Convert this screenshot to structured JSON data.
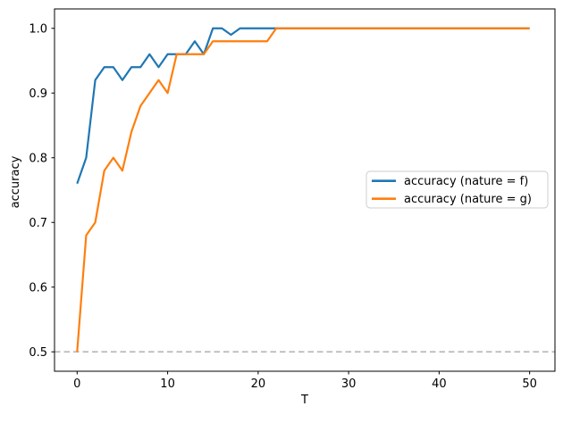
{
  "figure": {
    "background": "#ffffff",
    "spine_color": "#000000"
  },
  "chart_data": {
    "type": "line",
    "title": "",
    "xlabel": "T",
    "ylabel": "accuracy",
    "x_ticks": [
      "0",
      "10",
      "20",
      "30",
      "40",
      "50"
    ],
    "x_tick_values": [
      0,
      10,
      20,
      30,
      40,
      50
    ],
    "y_ticks": [
      "0.5",
      "0.6",
      "0.7",
      "0.8",
      "0.9",
      "1.0"
    ],
    "y_tick_values": [
      0.5,
      0.6,
      0.7,
      0.8,
      0.9,
      1.0
    ],
    "xlim": [
      -2.5,
      52.8
    ],
    "ylim": [
      0.47,
      1.03
    ],
    "grid": false,
    "legend_position": "center right",
    "reference_line": {
      "y": 0.5,
      "style": "dashed",
      "color": "#b9b9b9"
    },
    "x": [
      0,
      1,
      2,
      3,
      4,
      5,
      6,
      7,
      8,
      9,
      10,
      11,
      12,
      13,
      14,
      15,
      16,
      17,
      18,
      19,
      20,
      21,
      22,
      23,
      24,
      25,
      26,
      27,
      28,
      29,
      30,
      31,
      32,
      33,
      34,
      35,
      36,
      37,
      38,
      39,
      40,
      41,
      42,
      43,
      44,
      45,
      46,
      47,
      48,
      49,
      50
    ],
    "series": [
      {
        "name": "accuracy (nature = f)",
        "color": "#1f77b4",
        "values": [
          0.76,
          0.8,
          0.92,
          0.94,
          0.94,
          0.92,
          0.94,
          0.94,
          0.96,
          0.94,
          0.96,
          0.96,
          0.96,
          0.98,
          0.96,
          1.0,
          1.0,
          0.99,
          1.0,
          1.0,
          1.0,
          1.0,
          1.0,
          1.0,
          1.0,
          1.0,
          1.0,
          1.0,
          1.0,
          1.0,
          1.0,
          1.0,
          1.0,
          1.0,
          1.0,
          1.0,
          1.0,
          1.0,
          1.0,
          1.0,
          1.0,
          1.0,
          1.0,
          1.0,
          1.0,
          1.0,
          1.0,
          1.0,
          1.0,
          1.0,
          1.0
        ]
      },
      {
        "name": "accuracy (nature = g)",
        "color": "#ff7f0e",
        "values": [
          0.5,
          0.68,
          0.7,
          0.78,
          0.8,
          0.78,
          0.84,
          0.88,
          0.9,
          0.92,
          0.9,
          0.96,
          0.96,
          0.96,
          0.96,
          0.98,
          0.98,
          0.98,
          0.98,
          0.98,
          0.98,
          0.98,
          1.0,
          1.0,
          1.0,
          1.0,
          1.0,
          1.0,
          1.0,
          1.0,
          1.0,
          1.0,
          1.0,
          1.0,
          1.0,
          1.0,
          1.0,
          1.0,
          1.0,
          1.0,
          1.0,
          1.0,
          1.0,
          1.0,
          1.0,
          1.0,
          1.0,
          1.0,
          1.0,
          1.0,
          1.0
        ]
      }
    ]
  },
  "legend": {
    "entries": [
      {
        "label": "accuracy (nature = f)",
        "color": "#1f77b4"
      },
      {
        "label": "accuracy (nature = g)",
        "color": "#ff7f0e"
      }
    ]
  }
}
